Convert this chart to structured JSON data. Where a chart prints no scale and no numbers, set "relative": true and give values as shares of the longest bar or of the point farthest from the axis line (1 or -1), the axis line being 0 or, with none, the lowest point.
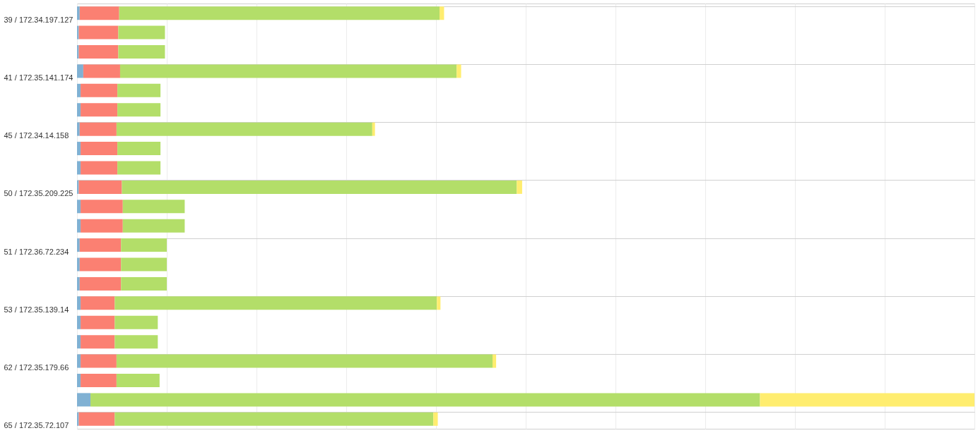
{
  "chart_data": {
    "type": "bar",
    "orientation": "horizontal",
    "stacked": true,
    "relative": true,
    "grid": true,
    "legend": false,
    "tick_labels": "y",
    "categories": [
      "39 / 172.34.197.127",
      null,
      null,
      "41 / 172.35.141.174",
      null,
      null,
      "45 / 172.34.14.158",
      null,
      null,
      "50 / 172.35.209.225",
      null,
      null,
      "51 / 172.36.72.234",
      null,
      null,
      "53 / 172.35.139.14",
      null,
      null,
      "62 / 172.35.179.66",
      null,
      null,
      "65 / 172.35.72.107"
    ],
    "series": [
      {
        "color": "#80b1d3",
        "values": [
          0.003,
          0.002,
          0.002,
          0.007,
          0.004,
          0.004,
          0.003,
          0.004,
          0.004,
          0.002,
          0.004,
          0.004,
          0.003,
          0.003,
          0.003,
          0.004,
          0.004,
          0.004,
          0.004,
          0.004,
          0.015,
          0.002
        ]
      },
      {
        "color": "#fb8072",
        "values": [
          0.044,
          0.044,
          0.044,
          0.041,
          0.041,
          0.041,
          0.041,
          0.041,
          0.041,
          0.048,
          0.047,
          0.047,
          0.046,
          0.046,
          0.046,
          0.038,
          0.038,
          0.038,
          0.04,
          0.04,
          null,
          0.04
        ]
      },
      {
        "color": "#b3de69",
        "values": [
          0.357,
          0.052,
          0.052,
          0.375,
          0.048,
          0.048,
          0.285,
          0.048,
          0.048,
          0.44,
          0.069,
          0.069,
          0.051,
          0.051,
          0.051,
          0.359,
          0.048,
          0.048,
          0.419,
          0.048,
          0.746,
          0.355
        ]
      },
      {
        "color": "#ffed6f",
        "values": [
          0.005,
          null,
          null,
          0.005,
          null,
          null,
          0.003,
          null,
          null,
          0.006,
          null,
          null,
          null,
          null,
          null,
          0.004,
          null,
          null,
          0.004,
          null,
          0.239,
          0.005
        ]
      }
    ]
  }
}
